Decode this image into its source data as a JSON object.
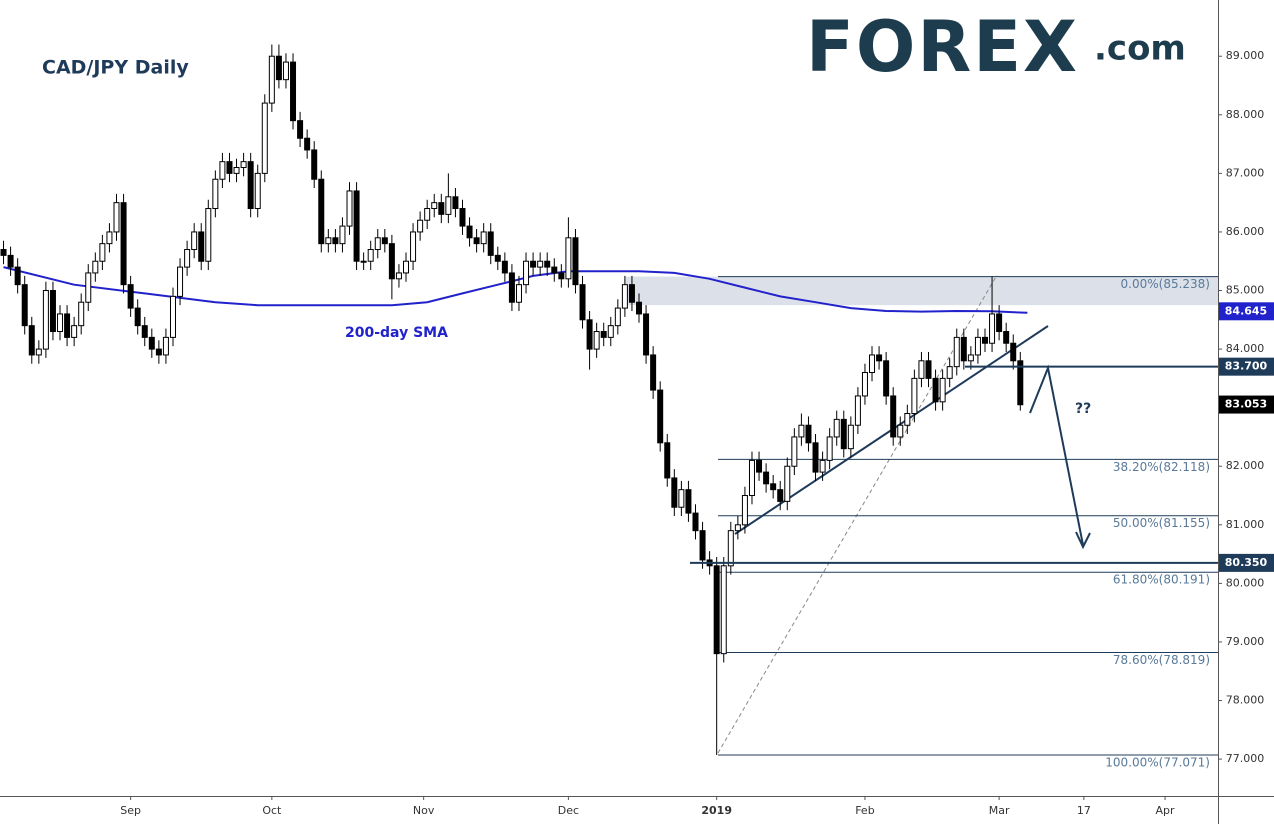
{
  "chart_data": {
    "type": "candlestick",
    "title": "CAD/JPY Daily",
    "logo": "FOREX",
    "logo_suffix": ".com",
    "x": [
      0,
      1,
      2,
      3,
      4,
      5,
      6,
      7,
      8,
      9,
      10,
      11,
      12,
      13,
      14,
      15,
      16,
      17,
      18,
      19,
      20,
      21,
      22,
      23,
      24,
      25,
      26,
      27,
      28,
      29,
      30,
      31,
      32,
      33,
      34,
      35,
      36,
      37,
      38,
      39,
      40,
      41,
      42,
      43,
      44,
      45,
      46,
      47,
      48,
      49,
      50,
      51,
      52,
      53,
      54,
      55,
      56,
      57,
      58,
      59,
      60,
      61,
      62,
      63,
      64,
      65,
      66,
      67,
      68,
      69,
      70,
      71,
      72,
      73,
      74,
      75,
      76,
      77,
      78,
      79,
      80,
      81,
      82,
      83,
      84,
      85,
      86,
      87,
      88,
      89,
      90,
      91,
      92,
      93,
      94,
      95,
      96,
      97,
      98,
      99,
      100,
      101,
      102,
      103,
      104,
      105,
      106,
      107,
      108,
      109,
      110,
      111,
      112,
      113,
      114,
      115,
      116,
      117,
      118,
      119,
      120,
      121,
      122,
      123,
      124,
      125,
      126,
      127,
      128,
      129,
      130,
      131,
      132,
      133,
      134,
      135,
      136,
      137,
      138,
      139,
      140,
      141,
      142,
      143,
      144
    ],
    "open": [
      85.7,
      85.6,
      85.4,
      85.1,
      84.4,
      83.9,
      84.0,
      85.0,
      84.3,
      84.6,
      84.2,
      84.4,
      84.8,
      85.3,
      85.5,
      85.8,
      86.0,
      86.5,
      85.1,
      84.7,
      84.4,
      84.2,
      84.0,
      83.9,
      84.2,
      84.9,
      85.4,
      85.7,
      86.0,
      85.5,
      86.4,
      86.9,
      87.2,
      87.0,
      87.1,
      87.2,
      86.4,
      87.0,
      88.2,
      89.0,
      88.6,
      88.9,
      87.9,
      87.6,
      87.4,
      86.9,
      85.8,
      85.9,
      85.8,
      86.1,
      86.7,
      85.5,
      85.5,
      85.7,
      85.9,
      85.8,
      85.2,
      85.3,
      85.5,
      86.0,
      86.2,
      86.4,
      86.5,
      86.3,
      86.6,
      86.4,
      86.1,
      85.9,
      85.8,
      86.0,
      85.6,
      85.5,
      85.3,
      84.8,
      85.1,
      85.5,
      85.4,
      85.5,
      85.4,
      85.3,
      85.2,
      85.9,
      85.1,
      84.5,
      84.0,
      84.3,
      84.2,
      84.4,
      84.7,
      85.1,
      84.8,
      84.6,
      83.9,
      83.3,
      82.4,
      81.8,
      81.3,
      81.6,
      81.2,
      80.9,
      80.4,
      80.3,
      78.8,
      80.3,
      80.9,
      81.0,
      81.5,
      82.1,
      81.9,
      81.7,
      81.6,
      81.4,
      82.0,
      82.5,
      82.7,
      82.4,
      81.9,
      82.1,
      82.5,
      82.8,
      82.3,
      82.7,
      83.2,
      83.6,
      83.9,
      83.8,
      83.2,
      82.5,
      82.7,
      82.9,
      83.5,
      83.8,
      83.5,
      83.1,
      83.5,
      83.7,
      84.2,
      83.8,
      83.9,
      84.2,
      84.1,
      84.6,
      84.3,
      84.1,
      83.8
    ],
    "high": [
      85.85,
      85.75,
      85.55,
      85.25,
      84.55,
      84.15,
      85.15,
      85.15,
      84.75,
      84.75,
      84.55,
      84.95,
      85.45,
      85.65,
      85.95,
      86.15,
      86.65,
      86.65,
      85.25,
      84.85,
      84.55,
      84.35,
      84.15,
      84.35,
      85.05,
      85.55,
      85.85,
      86.15,
      86.15,
      86.55,
      87.05,
      87.35,
      87.35,
      87.25,
      87.35,
      87.35,
      87.15,
      88.35,
      89.2,
      89.2,
      89.05,
      89.05,
      88.05,
      87.75,
      87.55,
      87.05,
      86.05,
      86.05,
      86.25,
      86.85,
      86.85,
      85.65,
      85.85,
      86.05,
      86.05,
      85.95,
      85.45,
      85.65,
      86.15,
      86.35,
      86.55,
      86.65,
      86.65,
      87.0,
      86.75,
      86.55,
      86.25,
      86.05,
      86.15,
      86.15,
      85.75,
      85.65,
      85.45,
      85.25,
      85.65,
      85.65,
      85.65,
      85.65,
      85.55,
      85.45,
      86.25,
      86.05,
      85.25,
      84.65,
      84.45,
      84.45,
      84.55,
      84.85,
      85.25,
      85.25,
      84.95,
      84.75,
      84.05,
      83.45,
      82.55,
      81.95,
      81.75,
      81.75,
      81.35,
      81.05,
      80.55,
      80.45,
      80.45,
      81.05,
      81.15,
      81.65,
      82.25,
      82.25,
      82.05,
      81.85,
      81.75,
      82.15,
      82.65,
      82.9,
      82.85,
      82.55,
      82.25,
      82.65,
      82.95,
      82.95,
      82.85,
      83.35,
      83.75,
      84.05,
      84.05,
      83.95,
      83.35,
      82.85,
      83.05,
      83.65,
      83.95,
      83.95,
      83.65,
      83.65,
      83.85,
      84.35,
      84.35,
      84.05,
      84.35,
      84.35,
      85.24,
      84.75,
      84.45,
      84.25,
      83.95
    ],
    "low": [
      85.45,
      85.25,
      84.95,
      84.25,
      83.75,
      83.75,
      83.85,
      84.15,
      84.15,
      84.05,
      84.05,
      84.25,
      84.65,
      85.15,
      85.35,
      85.65,
      85.85,
      84.95,
      84.55,
      84.25,
      84.05,
      83.85,
      83.75,
      83.75,
      84.05,
      84.75,
      85.25,
      85.55,
      85.35,
      85.35,
      86.25,
      86.75,
      86.85,
      86.85,
      86.95,
      86.25,
      86.25,
      86.85,
      88.05,
      88.45,
      88.45,
      87.75,
      87.45,
      87.25,
      86.75,
      85.65,
      85.65,
      85.65,
      85.65,
      85.95,
      85.35,
      85.35,
      85.35,
      85.55,
      85.65,
      84.85,
      85.05,
      85.15,
      85.35,
      85.85,
      86.05,
      86.25,
      86.15,
      86.15,
      86.25,
      85.95,
      85.75,
      85.65,
      85.65,
      85.45,
      85.35,
      85.15,
      84.65,
      84.65,
      84.95,
      85.25,
      85.25,
      85.25,
      85.15,
      85.05,
      85.05,
      84.95,
      84.35,
      83.65,
      83.85,
      84.05,
      84.05,
      84.25,
      84.55,
      84.65,
      84.45,
      83.75,
      83.15,
      82.25,
      81.65,
      81.15,
      81.15,
      81.05,
      80.75,
      80.25,
      80.15,
      77.07,
      78.65,
      80.15,
      80.75,
      80.85,
      81.35,
      81.75,
      81.55,
      81.45,
      81.25,
      81.25,
      81.85,
      82.35,
      82.25,
      81.75,
      81.75,
      81.95,
      82.35,
      82.15,
      82.15,
      82.55,
      83.05,
      83.45,
      83.65,
      83.05,
      82.35,
      82.35,
      82.55,
      82.75,
      83.35,
      83.35,
      82.95,
      82.95,
      83.35,
      83.55,
      83.65,
      83.65,
      83.75,
      83.95,
      83.95,
      84.15,
      83.95,
      83.65,
      82.95
    ],
    "close": [
      85.6,
      85.4,
      85.1,
      84.4,
      83.9,
      84.0,
      85.0,
      84.3,
      84.6,
      84.2,
      84.4,
      84.8,
      85.3,
      85.5,
      85.8,
      86.0,
      86.5,
      85.1,
      84.7,
      84.4,
      84.2,
      84.0,
      83.9,
      84.2,
      84.9,
      85.4,
      85.7,
      86.0,
      85.5,
      86.4,
      86.9,
      87.2,
      87.0,
      87.1,
      87.2,
      86.4,
      87.0,
      88.2,
      89.0,
      88.6,
      88.9,
      87.9,
      87.6,
      87.4,
      86.9,
      85.8,
      85.9,
      85.8,
      86.1,
      86.7,
      85.5,
      85.5,
      85.7,
      85.9,
      85.8,
      85.2,
      85.3,
      85.5,
      86.0,
      86.2,
      86.4,
      86.5,
      86.3,
      86.6,
      86.4,
      86.1,
      85.9,
      85.8,
      86.0,
      85.6,
      85.5,
      85.3,
      84.8,
      85.1,
      85.5,
      85.4,
      85.5,
      85.4,
      85.3,
      85.2,
      85.9,
      85.1,
      84.5,
      84.0,
      84.3,
      84.2,
      84.4,
      84.7,
      85.1,
      84.8,
      84.6,
      83.9,
      83.3,
      82.4,
      81.8,
      81.3,
      81.6,
      81.2,
      80.9,
      80.4,
      80.3,
      78.8,
      80.3,
      80.9,
      81.0,
      81.5,
      82.1,
      81.9,
      81.7,
      81.6,
      81.4,
      82.0,
      82.5,
      82.7,
      82.4,
      81.9,
      82.1,
      82.5,
      82.8,
      82.3,
      82.7,
      83.2,
      83.6,
      83.9,
      83.8,
      83.2,
      82.5,
      82.7,
      82.9,
      83.5,
      83.8,
      83.5,
      83.1,
      83.5,
      83.7,
      84.2,
      83.8,
      83.9,
      84.2,
      84.1,
      84.6,
      84.3,
      84.1,
      83.8,
      83.05
    ],
    "up_color": "#ffffff",
    "down_color": "#000000",
    "sma": {
      "name": "200-day SMA",
      "color": "#2222cc",
      "x": [
        0,
        10,
        20,
        30,
        36,
        45,
        55,
        60,
        65,
        70,
        75,
        80,
        85,
        90,
        95,
        100,
        105,
        110,
        115,
        120,
        125,
        130,
        135,
        140,
        145
      ],
      "values": [
        85.4,
        85.1,
        84.95,
        84.8,
        84.75,
        84.75,
        84.75,
        84.8,
        84.95,
        85.1,
        85.25,
        85.33,
        85.33,
        85.33,
        85.3,
        85.2,
        85.05,
        84.9,
        84.8,
        84.7,
        84.65,
        84.64,
        84.65,
        84.645,
        84.62
      ]
    },
    "zone": [
      84.75,
      85.238
    ],
    "fib_levels": [
      {
        "value": 85.238,
        "label": "0.00%(85.238)"
      },
      {
        "value": 82.118,
        "label": "38.20%(82.118)"
      },
      {
        "value": 81.155,
        "label": "50.00%(81.155)"
      },
      {
        "value": 80.191,
        "label": "61.80%(80.191)"
      },
      {
        "value": 78.819,
        "label": "78.60%(78.819)"
      },
      {
        "value": 77.071,
        "label": "100.00%(77.071)"
      }
    ],
    "price_tags": [
      {
        "value": 84.645,
        "label": "84.645",
        "color": "#2222cc",
        "line": false
      },
      {
        "value": 83.7,
        "label": "83.700",
        "color": "#1f3b5a",
        "line": true
      },
      {
        "value": 83.053,
        "label": "83.053",
        "color": "#000000",
        "line": false
      },
      {
        "value": 80.35,
        "label": "80.350",
        "color": "#1f3b5a",
        "line": true
      }
    ],
    "annotation": "??",
    "xlim": [
      -0.5,
      172
    ],
    "xticks": [
      {
        "value": 18,
        "label": "Sep"
      },
      {
        "value": 38,
        "label": "Oct"
      },
      {
        "value": 59.5,
        "label": "Nov"
      },
      {
        "value": 80,
        "label": "Dec"
      },
      {
        "value": 101,
        "label": "2019"
      },
      {
        "value": 122,
        "label": "Feb"
      },
      {
        "value": 141,
        "label": "Mar"
      },
      {
        "value": 153,
        "label": "17"
      },
      {
        "value": 164.5,
        "label": "Apr"
      }
    ],
    "ylim": [
      76.37,
      89.96
    ],
    "yticks": [
      {
        "value": 77,
        "label": "77.000"
      },
      {
        "value": 78,
        "label": "78.000"
      },
      {
        "value": 79,
        "label": "79.000"
      },
      {
        "value": 80,
        "label": "80.000"
      },
      {
        "value": 81,
        "label": "81.000"
      },
      {
        "value": 82,
        "label": "82.000"
      },
      {
        "value": 83,
        "label": "83.000"
      },
      {
        "value": 84,
        "label": "84.000"
      },
      {
        "value": 85,
        "label": "85.000"
      },
      {
        "value": 86,
        "label": "86.000"
      },
      {
        "value": 87,
        "label": "87.000"
      },
      {
        "value": 88,
        "label": "88.000"
      },
      {
        "value": 89,
        "label": "89.000"
      }
    ]
  }
}
